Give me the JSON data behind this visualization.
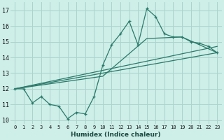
{
  "xlabel": "Humidex (Indice chaleur)",
  "bg_color": "#ceeee8",
  "grid_color": "#aad4cc",
  "line_color": "#2a7a6a",
  "xlim": [
    -0.5,
    23.5
  ],
  "ylim": [
    9.75,
    17.5
  ],
  "xticks": [
    0,
    1,
    2,
    3,
    4,
    5,
    6,
    7,
    8,
    9,
    10,
    11,
    12,
    13,
    14,
    15,
    16,
    17,
    18,
    19,
    20,
    21,
    22,
    23
  ],
  "yticks": [
    10,
    11,
    12,
    13,
    14,
    15,
    16,
    17
  ],
  "main_x": [
    0,
    1,
    2,
    3,
    4,
    5,
    6,
    7,
    8,
    9,
    10,
    11,
    12,
    13,
    14,
    15,
    16,
    17,
    18,
    19,
    20,
    21,
    22,
    23
  ],
  "main_y": [
    12.0,
    12.0,
    11.1,
    11.5,
    11.0,
    10.9,
    10.1,
    10.5,
    10.4,
    11.5,
    13.5,
    14.8,
    15.5,
    16.3,
    14.8,
    17.1,
    16.6,
    15.5,
    15.3,
    15.3,
    15.0,
    14.9,
    14.7,
    14.3
  ],
  "line2_x": [
    0,
    23
  ],
  "line2_y": [
    12.0,
    14.3
  ],
  "line3_x": [
    0,
    23
  ],
  "line3_y": [
    12.0,
    14.7
  ],
  "line4_x": [
    0,
    10,
    15,
    19,
    23
  ],
  "line4_y": [
    12.0,
    12.8,
    15.2,
    15.3,
    14.3
  ]
}
